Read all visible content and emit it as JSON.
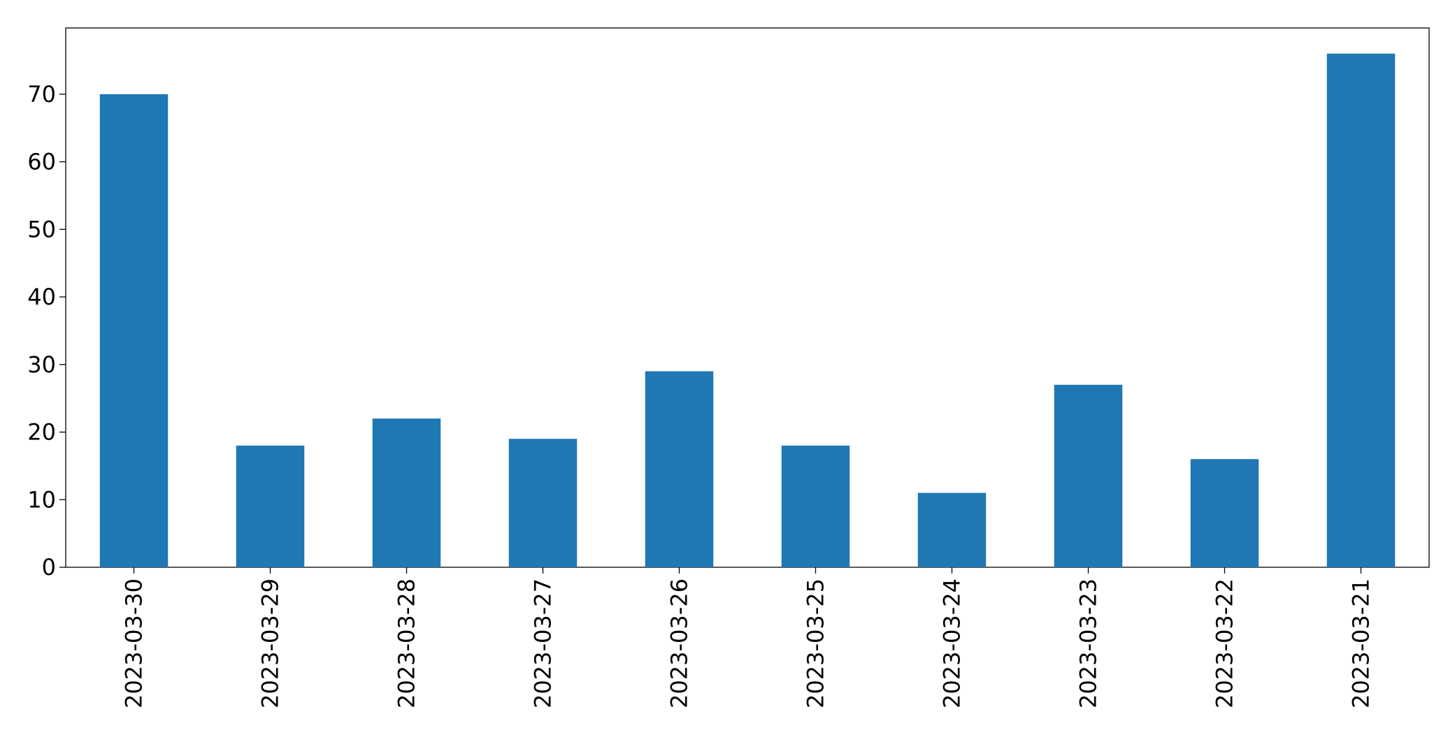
{
  "chart_data": {
    "type": "bar",
    "categories": [
      "2023-03-30",
      "2023-03-29",
      "2023-03-28",
      "2023-03-27",
      "2023-03-26",
      "2023-03-25",
      "2023-03-24",
      "2023-03-23",
      "2023-03-22",
      "2023-03-21"
    ],
    "values": [
      70,
      18,
      22,
      19,
      29,
      18,
      11,
      27,
      16,
      76
    ],
    "color": "#1f77b4",
    "ylim": [
      0,
      79.8
    ],
    "yticks": [
      0,
      10,
      20,
      30,
      40,
      50,
      60,
      70
    ],
    "grid": false
  }
}
